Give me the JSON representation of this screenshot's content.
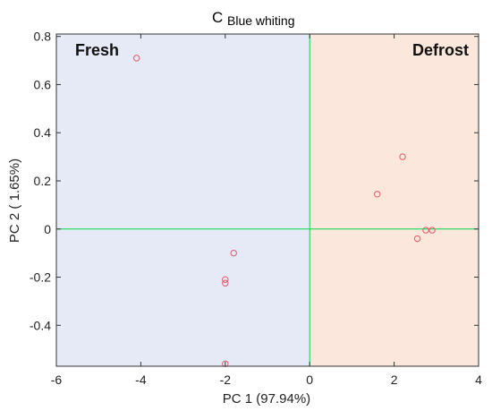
{
  "chart_data": {
    "type": "scatter",
    "panel_label": "C",
    "title": "Blue whiting",
    "xlabel": "PC 1 (97.94%)",
    "ylabel": "PC 2 ( 1.65%)",
    "xlim": [
      -6,
      4
    ],
    "ylim": [
      -0.57,
      0.81
    ],
    "xticks": [
      -6,
      -4,
      -2,
      0,
      2,
      4
    ],
    "yticks": [
      -0.4,
      -0.2,
      0,
      0.2,
      0.4,
      0.6,
      0.8
    ],
    "xtick_labels": [
      "-6",
      "-4",
      "-2",
      "0",
      "2",
      "4"
    ],
    "ytick_labels": [
      "-0.4",
      "-0.2",
      "0",
      "0.2",
      "0.4",
      "0.6",
      "0.8"
    ],
    "grid": false,
    "regions": [
      {
        "label": "Fresh",
        "x_range": [
          -6,
          0
        ],
        "color": "#e6eaf7",
        "label_position": "top-left"
      },
      {
        "label": "Defrost",
        "x_range": [
          0,
          4
        ],
        "color": "#fbe7dc",
        "label_position": "top-right"
      }
    ],
    "reference_lines": {
      "x": 0,
      "y": 0,
      "color": "#00d84a"
    },
    "series": [
      {
        "marker": "open-circle",
        "color": "#e05a6a",
        "points": [
          {
            "x": -4.1,
            "y": 0.71
          },
          {
            "x": -1.8,
            "y": -0.1
          },
          {
            "x": -2.0,
            "y": -0.21
          },
          {
            "x": -2.0,
            "y": -0.225
          },
          {
            "x": -2.0,
            "y": -0.56
          },
          {
            "x": 1.6,
            "y": 0.145
          },
          {
            "x": 2.2,
            "y": 0.3
          },
          {
            "x": 2.75,
            "y": -0.005
          },
          {
            "x": 2.9,
            "y": -0.005
          },
          {
            "x": 2.55,
            "y": -0.04
          }
        ]
      }
    ]
  }
}
